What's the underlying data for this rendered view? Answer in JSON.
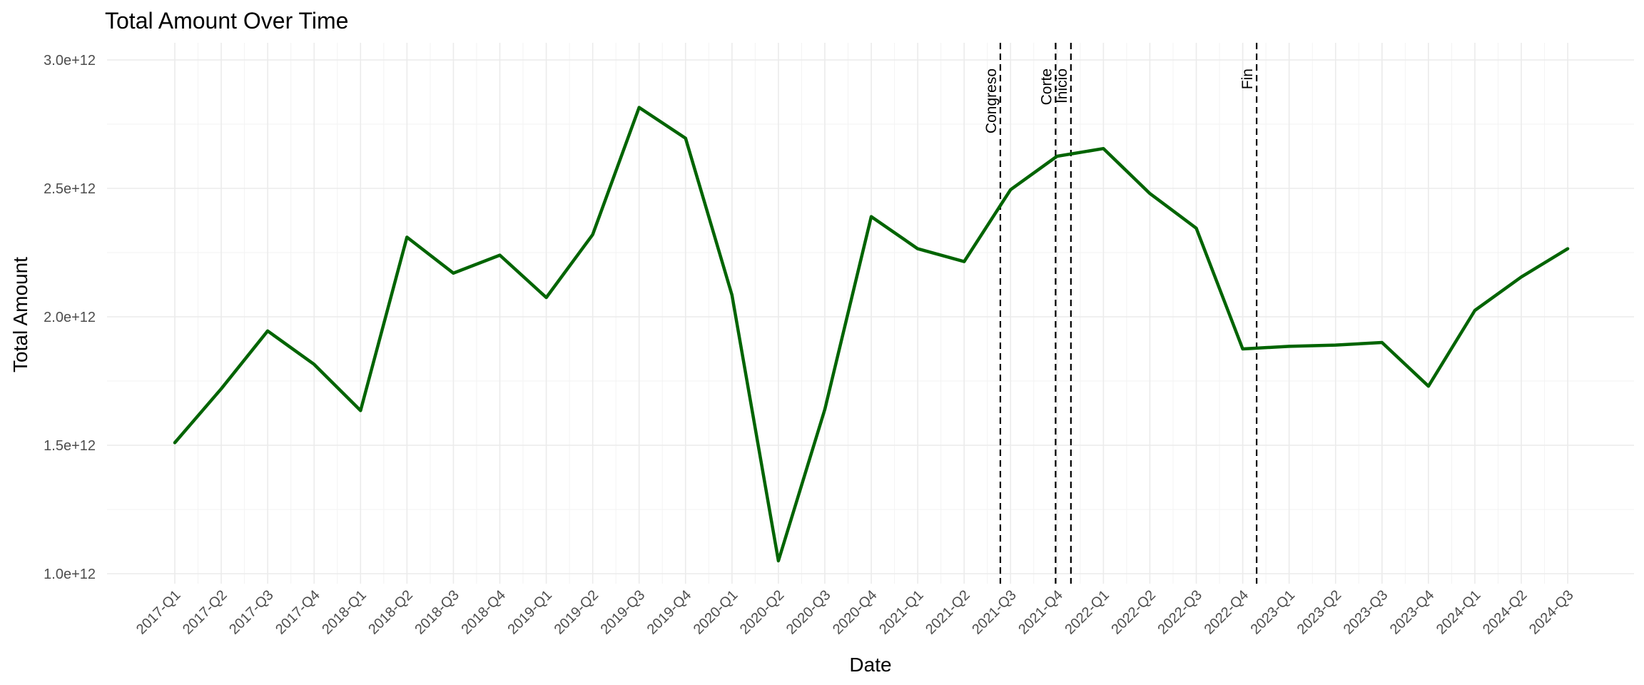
{
  "chart_data": {
    "type": "line",
    "title": "Total Amount Over Time",
    "xlabel": "Date",
    "ylabel": "Total Amount",
    "ylim": [
      1000000000000.0,
      3000000000000.0
    ],
    "yticks": [
      {
        "value": 1000000000000.0,
        "label": "1.0e+12"
      },
      {
        "value": 1500000000000.0,
        "label": "1.5e+12"
      },
      {
        "value": 2000000000000.0,
        "label": "2.0e+12"
      },
      {
        "value": 2500000000000.0,
        "label": "2.5e+12"
      },
      {
        "value": 3000000000000.0,
        "label": "3.0e+12"
      }
    ],
    "categories": [
      "2017-Q1",
      "2017-Q2",
      "2017-Q3",
      "2017-Q4",
      "2018-Q1",
      "2018-Q2",
      "2018-Q3",
      "2018-Q4",
      "2019-Q1",
      "2019-Q2",
      "2019-Q3",
      "2019-Q4",
      "2020-Q1",
      "2020-Q2",
      "2020-Q3",
      "2020-Q4",
      "2021-Q1",
      "2021-Q2",
      "2021-Q3",
      "2021-Q4",
      "2022-Q1",
      "2022-Q2",
      "2022-Q3",
      "2022-Q4",
      "2023-Q1",
      "2023-Q2",
      "2023-Q3",
      "2023-Q4",
      "2024-Q1",
      "2024-Q2",
      "2024-Q3"
    ],
    "series": [
      {
        "color": "#006400",
        "values": [
          1510000000000.0,
          1720000000000.0,
          1945000000000.0,
          1815000000000.0,
          1635000000000.0,
          2310000000000.0,
          2170000000000.0,
          2240000000000.0,
          2075000000000.0,
          2320000000000.0,
          2815000000000.0,
          2695000000000.0,
          2085000000000.0,
          1050000000000.0,
          1640000000000.0,
          2390000000000.0,
          2265000000000.0,
          2215000000000.0,
          2495000000000.0,
          2625000000000.0,
          2655000000000.0,
          2480000000000.0,
          2345000000000.0,
          1875000000000.0,
          1885000000000.0,
          1890000000000.0,
          1900000000000.0,
          1730000000000.0,
          2025000000000.0,
          2155000000000.0,
          2265000000000.0
        ]
      }
    ],
    "vlines": [
      {
        "label": "Congreso",
        "x": 17.78
      },
      {
        "label": "Corte",
        "x": 18.97
      },
      {
        "label": "Inicio",
        "x": 19.3
      },
      {
        "label": "Fin",
        "x": 23.3
      }
    ],
    "grid": true,
    "legend": "none"
  }
}
